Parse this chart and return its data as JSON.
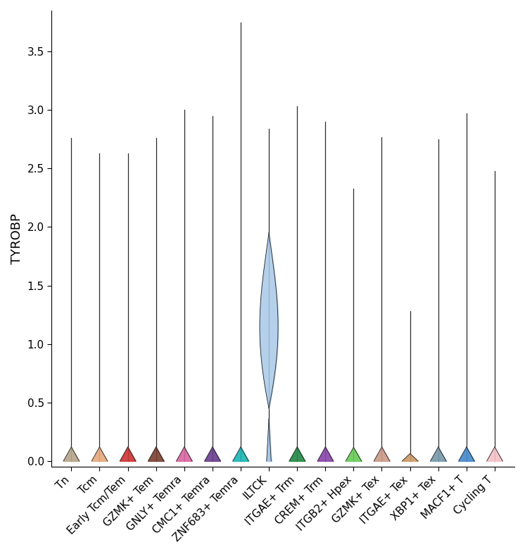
{
  "ylabel": "TYROBP",
  "ylim": [
    -0.05,
    3.85
  ],
  "yticks": [
    0.0,
    0.5,
    1.0,
    1.5,
    2.0,
    2.5,
    3.0,
    3.5
  ],
  "categories": [
    "Tn",
    "Tcm",
    "Early Tcm/Tem",
    "GZMK+ Tem",
    "GNLY+ Temra",
    "CMC1+ Temra",
    "ZNF683+ Temra",
    "ILTCK",
    "ITGAE+ Trm",
    "CREM+ Trm",
    "ITGB2+ Hpex",
    "GZMK+ Tex",
    "ITGAE+ Tex",
    "XBP1+ Tex",
    "MACF1+ T",
    "Cycling T"
  ],
  "colors": [
    "#b5a58a",
    "#e8a87c",
    "#cc3333",
    "#7a4030",
    "#d966a0",
    "#6a3d8f",
    "#1ab5b5",
    "#a8c8e8",
    "#228844",
    "#8844aa",
    "#66cc55",
    "#cc9988",
    "#cc9966",
    "#7799aa",
    "#4488cc",
    "#f5c0c8"
  ],
  "max_vals": [
    2.76,
    2.63,
    2.63,
    2.76,
    3.0,
    2.95,
    3.75,
    2.84,
    3.03,
    2.9,
    2.33,
    2.77,
    1.28,
    2.75,
    2.97,
    2.48
  ],
  "iltck_body": {
    "low": 0.45,
    "high": 1.95
  },
  "background_color": "#ffffff",
  "label_fontsize": 13,
  "tick_fontsize": 11,
  "linecolor": "#2a2a2a",
  "linewidth": 0.9
}
